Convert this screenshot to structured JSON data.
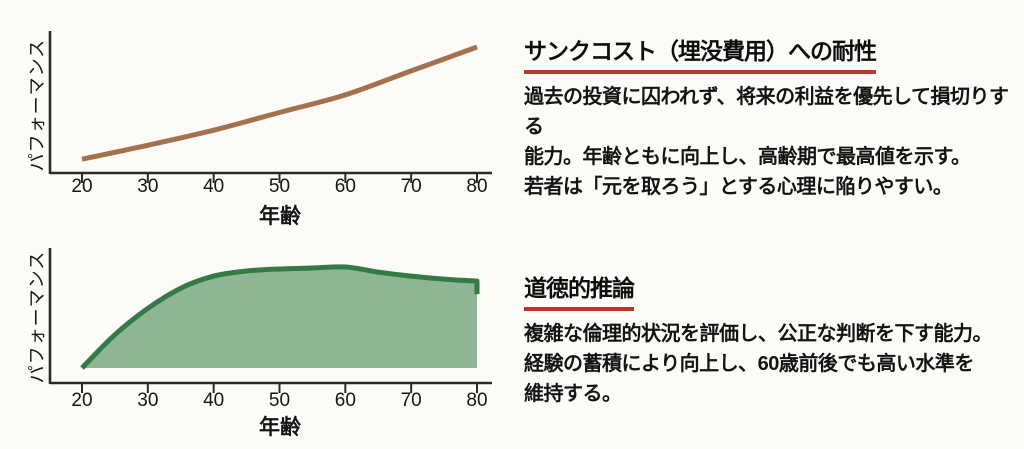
{
  "page": {
    "background": "#fcfbf8",
    "text_color": "#141414",
    "accent_underline_color": "#b9342a"
  },
  "chart_data": [
    {
      "type": "line",
      "title": "サンクコスト（埋没費用）への耐性",
      "xlabel": "年齢",
      "ylabel": "パフォーマンス",
      "x": [
        20,
        30,
        40,
        50,
        60,
        70,
        80
      ],
      "y": [
        0.11,
        0.22,
        0.34,
        0.48,
        0.62,
        0.81,
        1.0
      ],
      "x_ticks": [
        "20",
        "30",
        "40",
        "50",
        "60",
        "70",
        "80"
      ],
      "xlim": [
        20,
        80
      ],
      "ylim": [
        0,
        1
      ],
      "grid": false,
      "legend": false,
      "line_color": "#a4714e",
      "axis_color": "#2a2a2a"
    },
    {
      "type": "area",
      "title": "道徳的推論",
      "xlabel": "年齢",
      "ylabel": "パフォーマンス",
      "x": [
        20,
        25,
        30,
        35,
        40,
        45,
        50,
        55,
        60,
        65,
        70,
        75,
        80
      ],
      "y": [
        0.0,
        0.33,
        0.59,
        0.79,
        0.91,
        0.96,
        0.98,
        0.99,
        1.0,
        0.95,
        0.91,
        0.88,
        0.86
      ],
      "x_ticks": [
        "20",
        "30",
        "40",
        "50",
        "60",
        "70",
        "80"
      ],
      "xlim": [
        20,
        80
      ],
      "ylim": [
        0,
        1
      ],
      "grid": false,
      "legend": false,
      "line_color": "#337a45",
      "fill_color": "#8eb694",
      "axis_color": "#2a2a2a"
    }
  ],
  "sections": [
    {
      "title": "サンクコスト（埋没費用）への耐性",
      "lines": [
        "過去の投資に囚われず、将来の利益を優先して損切りする",
        "能力。年齢ともに向上し、高齢期で最高値を示す。",
        "若者は「元を取ろう」とする心理に陥りやすい。"
      ]
    },
    {
      "title": "道徳的推論",
      "lines": [
        "複雑な倫理的状況を評価し、公正な判断を下す能力。",
        "経験の蓄積により向上し、60歳前後でも高い水準を",
        "維持する。"
      ]
    }
  ]
}
